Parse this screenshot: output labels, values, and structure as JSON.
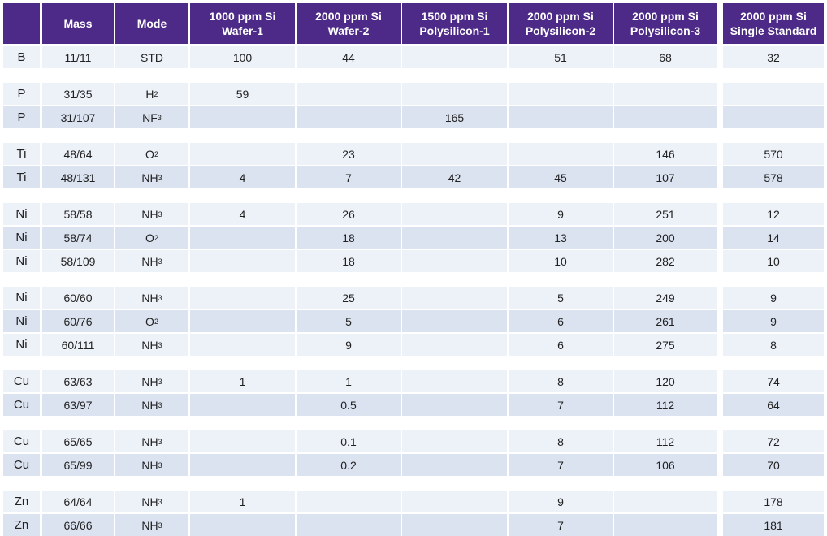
{
  "table": {
    "headers": [
      {
        "lines": [
          ""
        ]
      },
      {
        "lines": [
          "Mass"
        ]
      },
      {
        "lines": [
          "Mode"
        ]
      },
      {
        "lines": [
          "1000 ppm Si",
          "Wafer-1"
        ]
      },
      {
        "lines": [
          "2000 ppm Si",
          "Wafer-2"
        ]
      },
      {
        "lines": [
          "1500 ppm Si",
          "Polysilicon-1"
        ]
      },
      {
        "lines": [
          "2000 ppm Si",
          "Polysilicon-2"
        ]
      },
      {
        "lines": [
          "2000 ppm Si",
          "Polysilicon-3"
        ]
      },
      {
        "lines": [
          "2000 ppm Si",
          "Single Standard"
        ]
      }
    ],
    "groups": [
      [
        {
          "element": "B",
          "mass": "11/11",
          "mode": "STD",
          "mode_sub": "",
          "values": [
            "100",
            "44",
            "",
            "51",
            "68",
            "32"
          ]
        }
      ],
      [
        {
          "element": "P",
          "mass": "31/35",
          "mode": "H",
          "mode_sub": "2",
          "values": [
            "59",
            "",
            "",
            "",
            "",
            ""
          ]
        },
        {
          "element": "P",
          "mass": "31/107",
          "mode": "NF",
          "mode_sub": "3",
          "values": [
            "",
            "",
            "165",
            "",
            "",
            ""
          ]
        }
      ],
      [
        {
          "element": "Ti",
          "mass": "48/64",
          "mode": "O",
          "mode_sub": "2",
          "values": [
            "",
            "23",
            "",
            "",
            "146",
            "570"
          ]
        },
        {
          "element": "Ti",
          "mass": "48/131",
          "mode": "NH",
          "mode_sub": "3",
          "values": [
            "4",
            "7",
            "42",
            "45",
            "107",
            "578"
          ]
        }
      ],
      [
        {
          "element": "Ni",
          "mass": "58/58",
          "mode": "NH",
          "mode_sub": "3",
          "values": [
            "4",
            "26",
            "",
            "9",
            "251",
            "12"
          ]
        },
        {
          "element": "Ni",
          "mass": "58/74",
          "mode": "O",
          "mode_sub": "2",
          "values": [
            "",
            "18",
            "",
            "13",
            "200",
            "14"
          ]
        },
        {
          "element": "Ni",
          "mass": "58/109",
          "mode": "NH",
          "mode_sub": "3",
          "values": [
            "",
            "18",
            "",
            "10",
            "282",
            "10"
          ]
        }
      ],
      [
        {
          "element": "Ni",
          "mass": "60/60",
          "mode": "NH",
          "mode_sub": "3",
          "values": [
            "",
            "25",
            "",
            "5",
            "249",
            "9"
          ]
        },
        {
          "element": "Ni",
          "mass": "60/76",
          "mode": "O",
          "mode_sub": "2",
          "values": [
            "",
            "5",
            "",
            "6",
            "261",
            "9"
          ]
        },
        {
          "element": "Ni",
          "mass": "60/111",
          "mode": "NH",
          "mode_sub": "3",
          "values": [
            "",
            "9",
            "",
            "6",
            "275",
            "8"
          ]
        }
      ],
      [
        {
          "element": "Cu",
          "mass": "63/63",
          "mode": "NH",
          "mode_sub": "3",
          "values": [
            "1",
            "1",
            "",
            "8",
            "120",
            "74"
          ]
        },
        {
          "element": "Cu",
          "mass": "63/97",
          "mode": "NH",
          "mode_sub": "3",
          "values": [
            "",
            "0.5",
            "",
            "7",
            "112",
            "64"
          ]
        }
      ],
      [
        {
          "element": "Cu",
          "mass": "65/65",
          "mode": "NH",
          "mode_sub": "3",
          "values": [
            "",
            "0.1",
            "",
            "8",
            "112",
            "72"
          ]
        },
        {
          "element": "Cu",
          "mass": "65/99",
          "mode": "NH",
          "mode_sub": "3",
          "values": [
            "",
            "0.2",
            "",
            "7",
            "106",
            "70"
          ]
        }
      ],
      [
        {
          "element": "Zn",
          "mass": "64/64",
          "mode": "NH",
          "mode_sub": "3",
          "values": [
            "1",
            "",
            "",
            "9",
            "",
            "178"
          ]
        },
        {
          "element": "Zn",
          "mass": "66/66",
          "mode": "NH",
          "mode_sub": "3",
          "values": [
            "",
            "",
            "",
            "7",
            "",
            "181"
          ]
        }
      ]
    ]
  }
}
